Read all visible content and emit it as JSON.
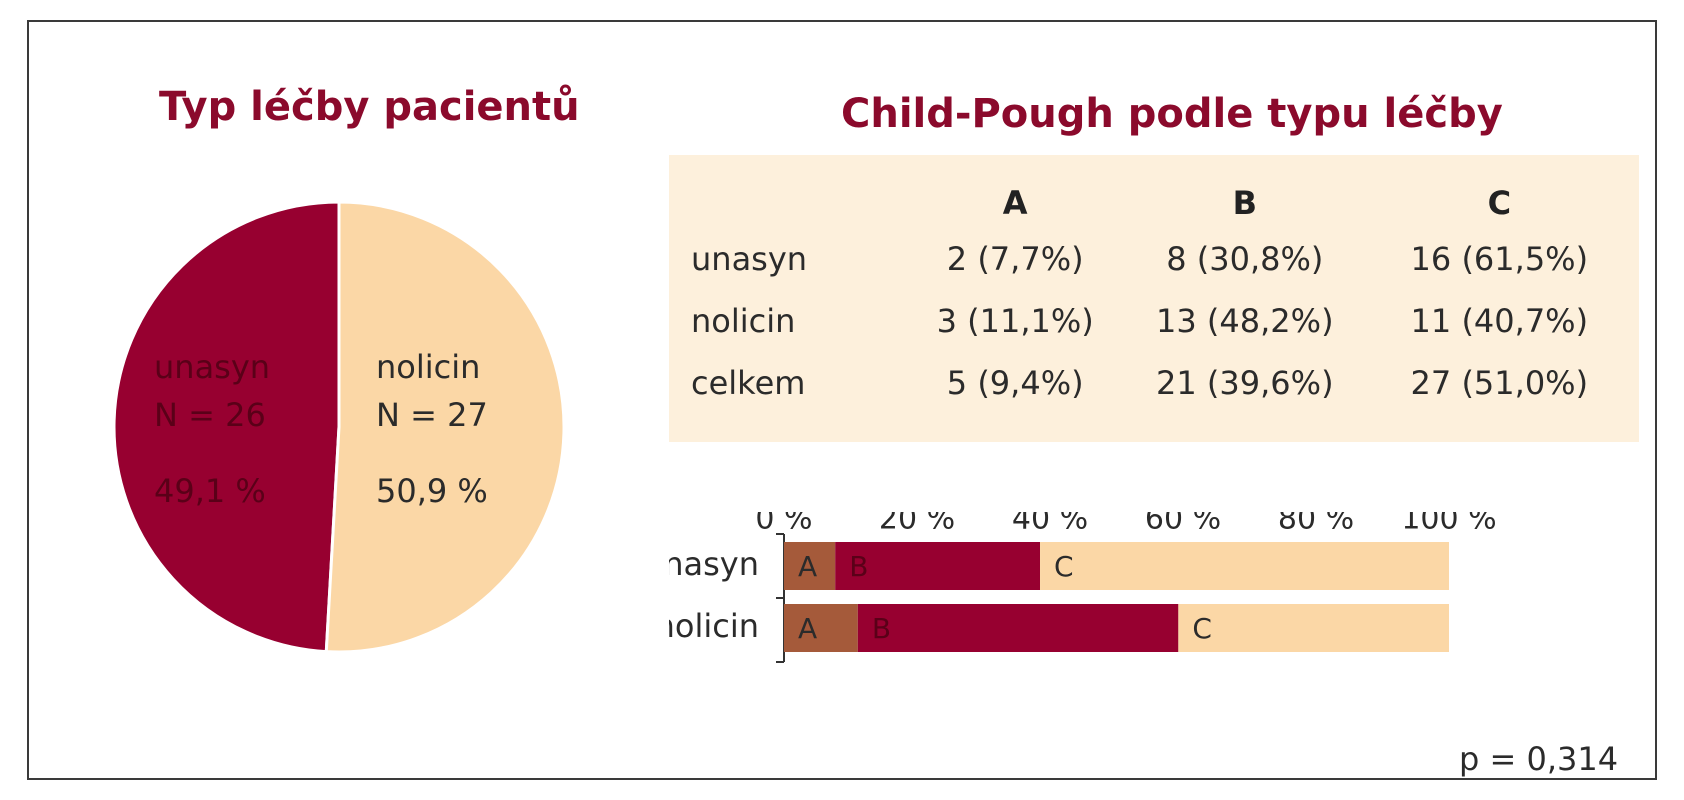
{
  "colors": {
    "unasyn": "#970030",
    "nolicin": "#fbd7a6",
    "A": "#a55a3a",
    "B": "#970030",
    "C": "#fbd7a6",
    "title": "#8b0a2c",
    "table_bg": "#fdf0dc"
  },
  "chart_data": [
    {
      "type": "pie",
      "title": "Typ léčby pacientů",
      "slices": [
        {
          "label": "unasyn",
          "n_text": "N = 26",
          "value": 49.1,
          "value_text": "49,1 %",
          "color": "#970030"
        },
        {
          "label": "nolicin",
          "n_text": "N = 27",
          "value": 50.9,
          "value_text": "50,9 %",
          "color": "#fbd7a6"
        }
      ]
    },
    {
      "type": "table",
      "title": "Child-Pough podle typu léčby",
      "columns": [
        "",
        "A",
        "B",
        "C"
      ],
      "rows": [
        {
          "label": "unasyn",
          "cells": [
            "2 (7,7%)",
            "8 (30,8%)",
            "16 (61,5%)"
          ]
        },
        {
          "label": "nolicin",
          "cells": [
            "3 (11,1%)",
            "13 (48,2%)",
            "11 (40,7%)"
          ]
        },
        {
          "label": "celkem",
          "cells": [
            "5 (9,4%)",
            "21 (39,6%)",
            "27 (51,0%)"
          ]
        }
      ]
    },
    {
      "type": "bar",
      "orientation": "horizontal",
      "stacked": true,
      "categories": [
        "unasyn",
        "nolicin"
      ],
      "series": [
        {
          "name": "A",
          "values": [
            7.7,
            11.1
          ],
          "color": "#a55a3a"
        },
        {
          "name": "B",
          "values": [
            30.8,
            48.2
          ],
          "color": "#970030"
        },
        {
          "name": "C",
          "values": [
            61.5,
            40.7
          ],
          "color": "#fbd7a6"
        }
      ],
      "xlim": [
        0,
        100
      ],
      "xticks": [
        0,
        20,
        40,
        60,
        80,
        100
      ],
      "xtick_labels": [
        "0 %",
        "20 %",
        "40 %",
        "60 %",
        "80 %",
        "100 %"
      ],
      "axis_position": "top",
      "annotation": "p = 0,314"
    }
  ]
}
